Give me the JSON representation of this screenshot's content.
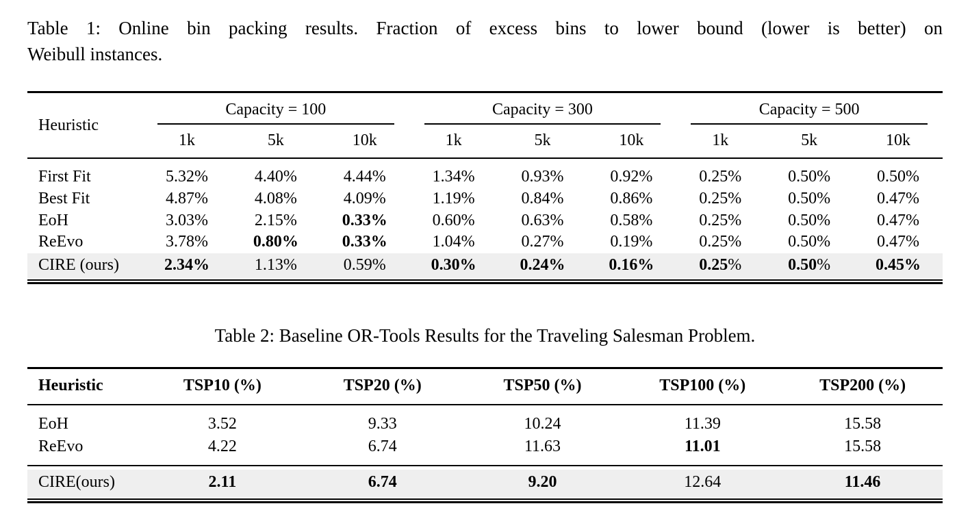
{
  "colors": {
    "text": "#000000",
    "rule": "#000000",
    "highlight_row": "#efefef",
    "background": "#ffffff"
  },
  "table1": {
    "caption_line1": "Table 1: Online bin packing results. Fraction of excess bins to lower bound (lower is better) on",
    "caption_line2": "Weibull instances.",
    "header": {
      "heuristic": "Heuristic",
      "groups": [
        {
          "label": "Capacity = 100",
          "subcols": [
            "1k",
            "5k",
            "10k"
          ]
        },
        {
          "label": "Capacity = 300",
          "subcols": [
            "1k",
            "5k",
            "10k"
          ]
        },
        {
          "label": "Capacity = 500",
          "subcols": [
            "1k",
            "5k",
            "10k"
          ]
        }
      ]
    },
    "rows": [
      {
        "name": "First Fit",
        "highlight": false,
        "cells": [
          {
            "t": "5.32%",
            "b": 0
          },
          {
            "t": "4.40%",
            "b": 0
          },
          {
            "t": "4.44%",
            "b": 0
          },
          {
            "t": "1.34%",
            "b": 0
          },
          {
            "t": "0.93%",
            "b": 0
          },
          {
            "t": "0.92%",
            "b": 0
          },
          {
            "t": "0.25%",
            "b": 0
          },
          {
            "t": "0.50%",
            "b": 0
          },
          {
            "t": "0.50%",
            "b": 0
          }
        ]
      },
      {
        "name": "Best Fit",
        "highlight": false,
        "cells": [
          {
            "t": "4.87%",
            "b": 0
          },
          {
            "t": "4.08%",
            "b": 0
          },
          {
            "t": "4.09%",
            "b": 0
          },
          {
            "t": "1.19%",
            "b": 0
          },
          {
            "t": "0.84%",
            "b": 0
          },
          {
            "t": "0.86%",
            "b": 0
          },
          {
            "t": "0.25%",
            "b": 0
          },
          {
            "t": "0.50%",
            "b": 0
          },
          {
            "t": "0.47%",
            "b": 0
          }
        ]
      },
      {
        "name": "EoH",
        "highlight": false,
        "cells": [
          {
            "t": "3.03%",
            "b": 0
          },
          {
            "t": "2.15%",
            "b": 0
          },
          {
            "t": "0.33%",
            "b": 1
          },
          {
            "t": "0.60%",
            "b": 0
          },
          {
            "t": "0.63%",
            "b": 0
          },
          {
            "t": "0.58%",
            "b": 0
          },
          {
            "t": "0.25%",
            "b": 0
          },
          {
            "t": "0.50%",
            "b": 0
          },
          {
            "t": "0.47%",
            "b": 0
          }
        ]
      },
      {
        "name": "ReEvo",
        "highlight": false,
        "cells": [
          {
            "t": "3.78%",
            "b": 0
          },
          {
            "t": "0.80%",
            "b": 1
          },
          {
            "t": "0.33%",
            "b": 1
          },
          {
            "t": "1.04%",
            "b": 0
          },
          {
            "t": "0.27%",
            "b": 0
          },
          {
            "t": "0.19%",
            "b": 0
          },
          {
            "t": "0.25%",
            "b": 0
          },
          {
            "t": "0.50%",
            "b": 0
          },
          {
            "t": "0.47%",
            "b": 0
          }
        ]
      },
      {
        "name": "CIRE (ours)",
        "highlight": true,
        "cells": [
          {
            "t": "2.34%",
            "b": 1
          },
          {
            "t": "1.13%",
            "b": 0
          },
          {
            "t": "0.59%",
            "b": 0
          },
          {
            "t": "0.30%",
            "b": 1
          },
          {
            "t": "0.24%",
            "b": 1
          },
          {
            "t": "0.16%",
            "b": 1
          },
          {
            "t": "0.25%",
            "b": 2
          },
          {
            "t": "0.50%",
            "b": 2
          },
          {
            "t": "0.45%",
            "b": 1
          }
        ]
      }
    ]
  },
  "table2": {
    "caption": "Table 2: Baseline OR-Tools Results for the Traveling Salesman Problem.",
    "columns": [
      "Heuristic",
      "TSP10 (%)",
      "TSP20 (%)",
      "TSP50 (%)",
      "TSP100 (%)",
      "TSP200 (%)"
    ],
    "rows": [
      {
        "name": "EoH",
        "highlight": false,
        "cells": [
          {
            "t": "3.52",
            "b": 0
          },
          {
            "t": "9.33",
            "b": 0
          },
          {
            "t": "10.24",
            "b": 0
          },
          {
            "t": "11.39",
            "b": 0
          },
          {
            "t": "15.58",
            "b": 0
          }
        ]
      },
      {
        "name": "ReEvo",
        "highlight": false,
        "cells": [
          {
            "t": "4.22",
            "b": 0
          },
          {
            "t": "6.74",
            "b": 0
          },
          {
            "t": "11.63",
            "b": 0
          },
          {
            "t": "11.01",
            "b": 1
          },
          {
            "t": "15.58",
            "b": 0
          }
        ]
      },
      {
        "name": "CIRE(ours)",
        "highlight": true,
        "cells": [
          {
            "t": "2.11",
            "b": 1
          },
          {
            "t": "6.74",
            "b": 1
          },
          {
            "t": "9.20",
            "b": 1
          },
          {
            "t": "12.64",
            "b": 0
          },
          {
            "t": "11.46",
            "b": 1
          }
        ]
      }
    ]
  }
}
